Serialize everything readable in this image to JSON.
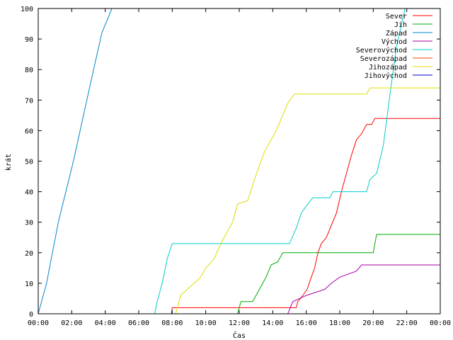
{
  "chart_data": {
    "type": "line",
    "xlabel": "Čas",
    "ylabel": "krát",
    "x_unit": "hour",
    "xlim": [
      0,
      24
    ],
    "ylim": [
      0,
      100
    ],
    "x_ticks": [
      {
        "value": 0,
        "label": "00:00"
      },
      {
        "value": 2,
        "label": "02:00"
      },
      {
        "value": 4,
        "label": "04:00"
      },
      {
        "value": 6,
        "label": "06:00"
      },
      {
        "value": 8,
        "label": "08:00"
      },
      {
        "value": 10,
        "label": "10:00"
      },
      {
        "value": 12,
        "label": "12:00"
      },
      {
        "value": 14,
        "label": "14:00"
      },
      {
        "value": 16,
        "label": "16:00"
      },
      {
        "value": 18,
        "label": "18:00"
      },
      {
        "value": 20,
        "label": "20:00"
      },
      {
        "value": 22,
        "label": "22:00"
      },
      {
        "value": 24,
        "label": "00:00"
      }
    ],
    "y_ticks": [
      0,
      10,
      20,
      30,
      40,
      50,
      60,
      70,
      80,
      90,
      100
    ],
    "grid": false,
    "legend_position": "top-right",
    "series": [
      {
        "name": "Sever",
        "color": "#ff0000",
        "points": [
          [
            0,
            0
          ],
          [
            7.95,
            0
          ],
          [
            8.0,
            2
          ],
          [
            15.4,
            2
          ],
          [
            15.5,
            4
          ],
          [
            15.8,
            6
          ],
          [
            16.05,
            8
          ],
          [
            16.3,
            12
          ],
          [
            16.5,
            15
          ],
          [
            16.7,
            20
          ],
          [
            16.9,
            23
          ],
          [
            17.2,
            25
          ],
          [
            17.5,
            29
          ],
          [
            17.8,
            33
          ],
          [
            18.1,
            40
          ],
          [
            18.4,
            46
          ],
          [
            18.7,
            52
          ],
          [
            19.0,
            57
          ],
          [
            19.3,
            59
          ],
          [
            19.6,
            62
          ],
          [
            19.9,
            62
          ],
          [
            20.1,
            64
          ],
          [
            24,
            64
          ]
        ]
      },
      {
        "name": "Jih",
        "color": "#00aa00",
        "points": [
          [
            0,
            0
          ],
          [
            11.9,
            0
          ],
          [
            12.1,
            4
          ],
          [
            12.8,
            4
          ],
          [
            13.0,
            6
          ],
          [
            13.3,
            9
          ],
          [
            13.6,
            12
          ],
          [
            13.9,
            16
          ],
          [
            14.3,
            17
          ],
          [
            14.6,
            20
          ],
          [
            20.0,
            20
          ],
          [
            20.2,
            26
          ],
          [
            24,
            26
          ]
        ]
      },
      {
        "name": "Západ",
        "color": "#0087c8",
        "points": [
          [
            0,
            0
          ],
          [
            0.5,
            10
          ],
          [
            1.2,
            30
          ],
          [
            2.1,
            50
          ],
          [
            3.1,
            75
          ],
          [
            3.8,
            92
          ],
          [
            4.4,
            100
          ]
        ]
      },
      {
        "name": "Východ",
        "color": "#aa00aa",
        "points": [
          [
            0,
            0
          ],
          [
            14.9,
            0
          ],
          [
            15.2,
            4
          ],
          [
            16.0,
            6
          ],
          [
            17.1,
            8
          ],
          [
            17.5,
            10
          ],
          [
            18.0,
            12
          ],
          [
            19.0,
            14
          ],
          [
            19.3,
            16
          ],
          [
            24,
            16
          ]
        ]
      },
      {
        "name": "Severovýchod",
        "color": "#00cccc",
        "points": [
          [
            0,
            0
          ],
          [
            6.95,
            0
          ],
          [
            7.1,
            4
          ],
          [
            7.4,
            10
          ],
          [
            7.7,
            18
          ],
          [
            8.0,
            23
          ],
          [
            15.0,
            23
          ],
          [
            15.4,
            28
          ],
          [
            15.7,
            33
          ],
          [
            16.1,
            36
          ],
          [
            16.4,
            38
          ],
          [
            17.4,
            38
          ],
          [
            17.6,
            40
          ],
          [
            19.6,
            40
          ],
          [
            19.8,
            44
          ],
          [
            20.2,
            46
          ],
          [
            20.6,
            55
          ],
          [
            21.0,
            72
          ],
          [
            21.4,
            88
          ],
          [
            21.9,
            100
          ]
        ]
      },
      {
        "name": "Severozápad",
        "color": "#ff4400",
        "points": []
      },
      {
        "name": "Jihozápad",
        "color": "#dddd00",
        "points": [
          [
            0,
            0
          ],
          [
            8.2,
            0
          ],
          [
            8.5,
            6
          ],
          [
            8.9,
            8
          ],
          [
            9.3,
            10
          ],
          [
            9.7,
            12
          ],
          [
            10.0,
            15
          ],
          [
            10.5,
            18
          ],
          [
            10.9,
            23
          ],
          [
            11.2,
            26
          ],
          [
            11.6,
            30
          ],
          [
            11.9,
            36
          ],
          [
            12.5,
            37
          ],
          [
            12.8,
            42
          ],
          [
            13.1,
            47
          ],
          [
            13.5,
            53
          ],
          [
            13.9,
            57
          ],
          [
            14.2,
            60
          ],
          [
            14.6,
            65
          ],
          [
            14.9,
            69
          ],
          [
            15.3,
            72
          ],
          [
            19.6,
            72
          ],
          [
            19.8,
            74
          ],
          [
            24,
            74
          ]
        ]
      },
      {
        "name": "Jihovýchod",
        "color": "#0000cc",
        "points": []
      }
    ]
  }
}
